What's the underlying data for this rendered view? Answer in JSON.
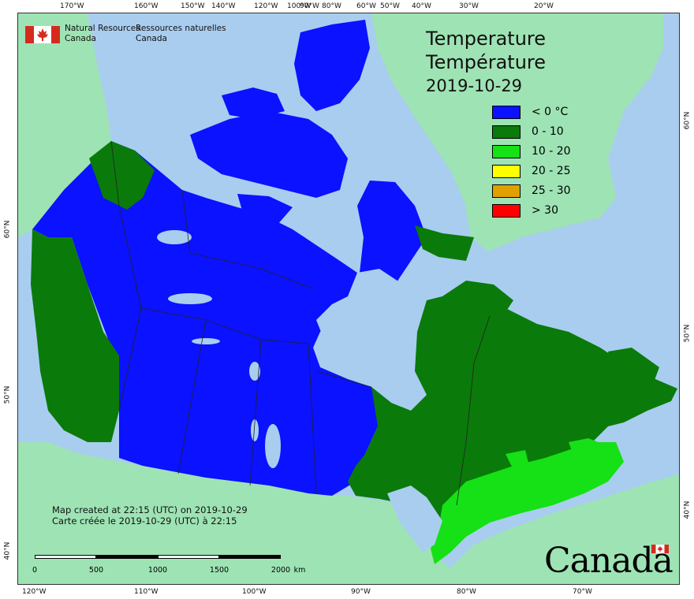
{
  "map": {
    "title_en": "Temperature",
    "title_fr": "Température",
    "date": "2019-10-29",
    "agency_en": [
      "Natural Resources",
      "Canada"
    ],
    "agency_fr": [
      "Ressources naturelles",
      "Canada"
    ],
    "credit_en": "Map created at 22:15 (UTC) on 2019-10-29",
    "credit_fr": "Carte créée le 2019-10-29 (UTC) à 22:15",
    "wordmark": "Canada",
    "legend": [
      {
        "label": "< 0 °C",
        "color": "#0a12ff"
      },
      {
        "label": "0 - 10",
        "color": "#0a7a0a"
      },
      {
        "label": "10 - 20",
        "color": "#16e016"
      },
      {
        "label": "20 - 25",
        "color": "#ffff00"
      },
      {
        "label": "25 - 30",
        "color": "#e0a000"
      },
      {
        "label": "> 30",
        "color": "#ff0000"
      }
    ],
    "top_ticks": [
      "170°W",
      "160°W",
      "150°W",
      "140°W",
      "120°W",
      "100°W",
      "90°W",
      "80°W",
      "60°W",
      "50°W",
      "40°W",
      "30°W",
      "20°W"
    ],
    "bottom_ticks": [
      "120°W",
      "110°W",
      "100°W",
      "90°W",
      "80°W",
      "70°W"
    ],
    "left_ticks": [
      "60°N",
      "50°N",
      "40°N"
    ],
    "right_ticks": [
      "60°N",
      "50°N",
      "40°N"
    ],
    "scale": {
      "labels": [
        "0",
        "500",
        "1000",
        "1500",
        "2000"
      ],
      "unit": "km"
    },
    "colors": {
      "ocean": "#a9cdef",
      "land_outside": "#9ee3b4",
      "cold": "#0a12ff",
      "cool": "#0a7a0a",
      "mild": "#16e016"
    }
  }
}
